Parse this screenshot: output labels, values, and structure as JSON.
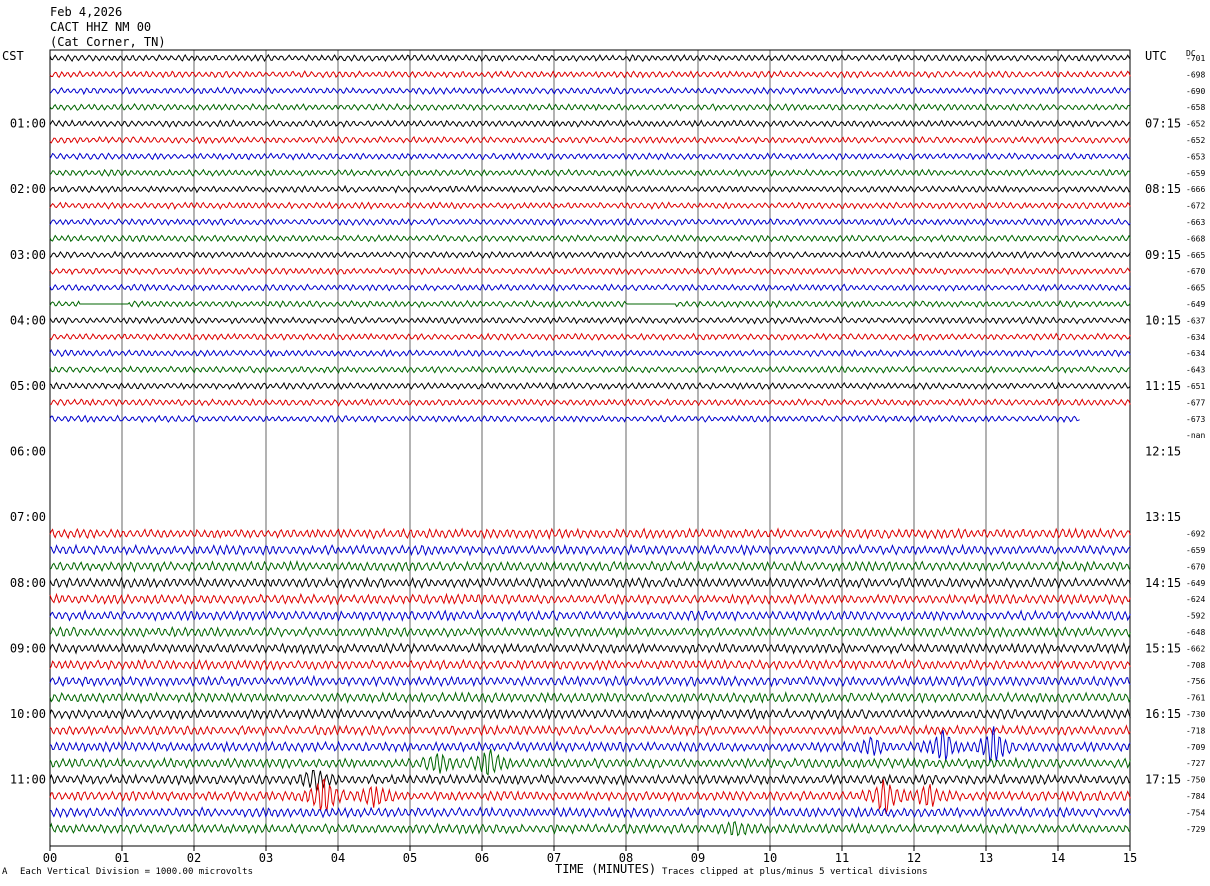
{
  "header": {
    "date": "Feb 4,2026",
    "station": "CACT HHZ NM 00",
    "location": "(Cat Corner, TN)"
  },
  "left_axis_label": "CST",
  "right_axis_label": "UTC",
  "dc_label": "DC",
  "footer": {
    "division_note": "Each Vertical Division = 1000.00 microvolts",
    "xlabel": "TIME (MINUTES)",
    "clip_note": "Traces clipped at plus/minus 5 vertical divisions",
    "corner_mark": "A"
  },
  "chart_data": {
    "type": "line",
    "title": "",
    "xlabel": "TIME (MINUTES)",
    "xlim": [
      0,
      15
    ],
    "x_ticks": [
      "00",
      "01",
      "02",
      "03",
      "04",
      "05",
      "06",
      "07",
      "08",
      "09",
      "10",
      "11",
      "12",
      "13",
      "14",
      "15"
    ],
    "row_minutes": 15,
    "rows_per_hour": 4,
    "left_time_labels": [
      "01:00",
      "02:00",
      "03:00",
      "04:00",
      "05:00",
      "06:00",
      "07:00",
      "08:00",
      "09:00",
      "10:00",
      "11:00"
    ],
    "right_time_labels": [
      "07:15",
      "08:15",
      "09:15",
      "10:15",
      "11:15",
      "12:15",
      "13:15",
      "14:15",
      "15:15",
      "16:15",
      "17:15"
    ],
    "label_row_indices": [
      4,
      8,
      12,
      16,
      20,
      24,
      28,
      32,
      36,
      40,
      44
    ],
    "color_cycle": [
      "#000000",
      "#dd0000",
      "#0000cc",
      "#006600"
    ],
    "traces": [
      {
        "row": 0,
        "dc": "-701"
      },
      {
        "row": 1,
        "dc": "-698"
      },
      {
        "row": 2,
        "dc": "-690"
      },
      {
        "row": 3,
        "dc": "-658"
      },
      {
        "row": 4,
        "dc": "-652"
      },
      {
        "row": 5,
        "dc": "-652"
      },
      {
        "row": 6,
        "dc": "-653"
      },
      {
        "row": 7,
        "dc": "-659"
      },
      {
        "row": 8,
        "dc": "-666"
      },
      {
        "row": 9,
        "dc": "-672"
      },
      {
        "row": 10,
        "dc": "-663"
      },
      {
        "row": 11,
        "dc": "-668"
      },
      {
        "row": 12,
        "dc": "-665"
      },
      {
        "row": 13,
        "dc": "-670"
      },
      {
        "row": 14,
        "dc": "-665"
      },
      {
        "row": 15,
        "dc": "-649"
      },
      {
        "row": 16,
        "dc": "-637"
      },
      {
        "row": 17,
        "dc": "-634"
      },
      {
        "row": 18,
        "dc": "-634"
      },
      {
        "row": 19,
        "dc": "-643"
      },
      {
        "row": 20,
        "dc": "-651"
      },
      {
        "row": 21,
        "dc": "-677"
      },
      {
        "row": 22,
        "dc": "-673"
      },
      {
        "row": 23,
        "dc": "-nan"
      },
      {
        "row": 29,
        "dc": "-692"
      },
      {
        "row": 30,
        "dc": "-659"
      },
      {
        "row": 31,
        "dc": "-670"
      },
      {
        "row": 32,
        "dc": "-649"
      },
      {
        "row": 33,
        "dc": "-624"
      },
      {
        "row": 34,
        "dc": "-592"
      },
      {
        "row": 35,
        "dc": "-648"
      },
      {
        "row": 36,
        "dc": "-662"
      },
      {
        "row": 37,
        "dc": "-708"
      },
      {
        "row": 38,
        "dc": "-756"
      },
      {
        "row": 39,
        "dc": "-761"
      },
      {
        "row": 40,
        "dc": "-730"
      },
      {
        "row": 41,
        "dc": "-718"
      },
      {
        "row": 42,
        "dc": "-709"
      },
      {
        "row": 43,
        "dc": "-727"
      },
      {
        "row": 44,
        "dc": "-750"
      },
      {
        "row": 45,
        "dc": "-784"
      },
      {
        "row": 46,
        "dc": "-754"
      },
      {
        "row": 47,
        "dc": "-729"
      }
    ],
    "quiet_rows": [
      0,
      1,
      2,
      3,
      4,
      5,
      6,
      7,
      8,
      9,
      10,
      11,
      12,
      13,
      14,
      15,
      16,
      17,
      18,
      19,
      20,
      21,
      22
    ],
    "partial_rows": [
      {
        "row": 22,
        "end_minute": 14.3
      }
    ],
    "gaps": [
      {
        "row": 15,
        "from_minute": 0.4,
        "to_minute": 1.1
      },
      {
        "row": 15,
        "from_minute": 8.0,
        "to_minute": 8.7
      }
    ],
    "events": [
      {
        "row": 42,
        "minute": 12.4,
        "amplitude": 3.5
      },
      {
        "row": 42,
        "minute": 13.1,
        "amplitude": 4.5
      },
      {
        "row": 42,
        "minute": 11.4,
        "amplitude": 1.8
      },
      {
        "row": 43,
        "minute": 6.1,
        "amplitude": 3.0
      },
      {
        "row": 43,
        "minute": 5.4,
        "amplitude": 2.0
      },
      {
        "row": 44,
        "minute": 3.7,
        "amplitude": 2.5
      },
      {
        "row": 45,
        "minute": 3.8,
        "amplitude": 4.5
      },
      {
        "row": 45,
        "minute": 4.5,
        "amplitude": 2.2
      },
      {
        "row": 45,
        "minute": 11.6,
        "amplitude": 4.0
      },
      {
        "row": 45,
        "minute": 12.2,
        "amplitude": 2.5
      },
      {
        "row": 47,
        "minute": 9.5,
        "amplitude": 1.5
      }
    ]
  }
}
